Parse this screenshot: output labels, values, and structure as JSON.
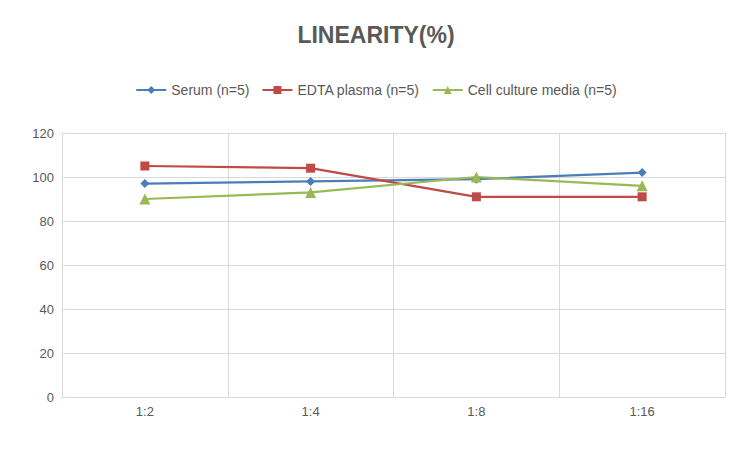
{
  "chart_data": {
    "type": "line",
    "title": "LINEARITY(%)",
    "categories": [
      "1:2",
      "1:4",
      "1:8",
      "1:16"
    ],
    "series": [
      {
        "name": "Serum (n=5)",
        "color": "#4a7ebb",
        "marker": "diamond",
        "values": [
          97,
          98,
          99,
          102
        ]
      },
      {
        "name": "EDTA plasma (n=5)",
        "color": "#be4b48",
        "marker": "square",
        "values": [
          105,
          104,
          91,
          91
        ]
      },
      {
        "name": "Cell culture media (n=5)",
        "color": "#98b954",
        "marker": "triangle",
        "values": [
          90,
          93,
          100,
          96
        ]
      }
    ],
    "ylim": [
      0,
      120
    ],
    "yticks": [
      0,
      20,
      40,
      60,
      80,
      100,
      120
    ],
    "grid": true,
    "legend": "top"
  }
}
